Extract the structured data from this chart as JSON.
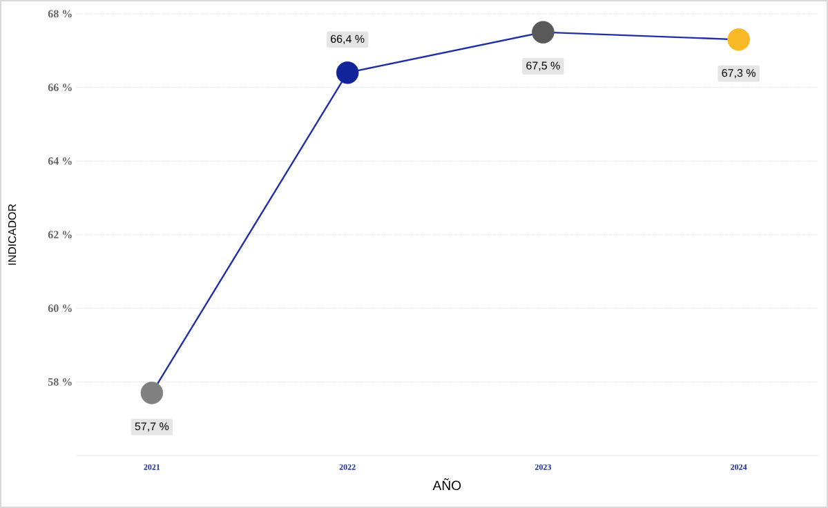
{
  "chart_data": {
    "type": "line",
    "xlabel": "AÑO",
    "ylabel": "INDICADOR",
    "categories": [
      "2021",
      "2022",
      "2023",
      "2024"
    ],
    "values": [
      57.7,
      66.4,
      67.5,
      67.3
    ],
    "value_labels": [
      "57,7 %",
      "66,4 %",
      "67,5 %",
      "67,3 %"
    ],
    "color": "#1f2fa8",
    "colors": [
      "#808080",
      "#13249a",
      "#595959",
      "#f9b826"
    ],
    "marker": "circle",
    "yticks": [
      {
        "value": 58,
        "label": "58 %"
      },
      {
        "value": 60,
        "label": "60 %"
      },
      {
        "value": 62,
        "label": "62 %"
      },
      {
        "value": 64,
        "label": "64 %"
      },
      {
        "value": 66,
        "label": "66 %"
      },
      {
        "value": 68,
        "label": "68 %"
      }
    ],
    "ylim": [
      56,
      68
    ],
    "grid": "y"
  }
}
